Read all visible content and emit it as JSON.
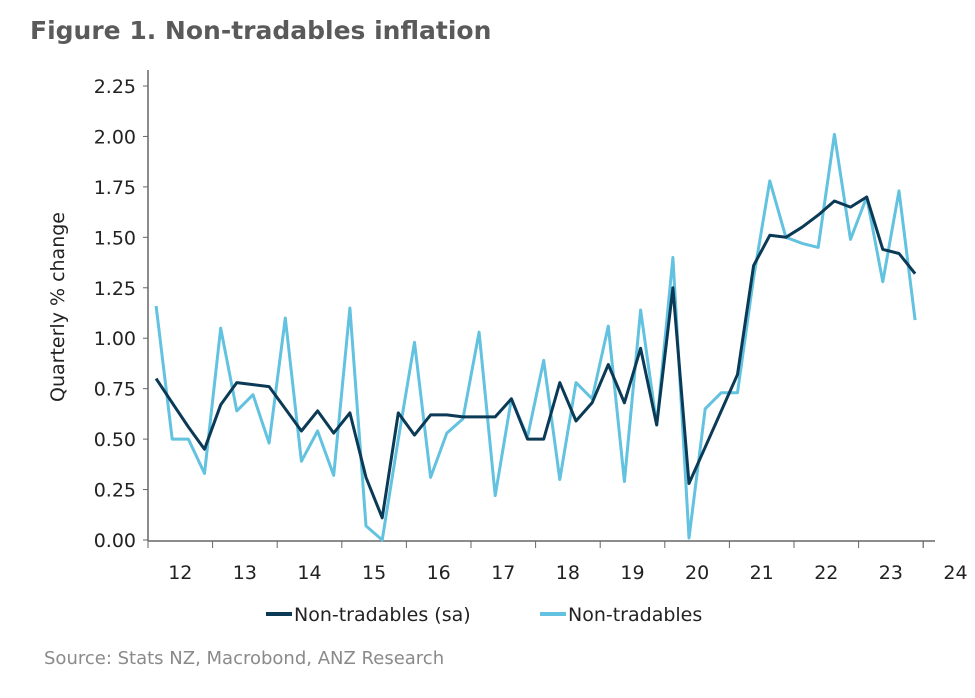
{
  "chart_data": {
    "type": "line",
    "title": "Figure 1. Non-tradables inflation",
    "ylabel": "Quarterly % change",
    "xlabel": "",
    "ylim": [
      0,
      2.25
    ],
    "yticks": [
      "0.00",
      "0.25",
      "0.50",
      "0.75",
      "1.00",
      "1.25",
      "1.50",
      "1.75",
      "2.00",
      "2.25"
    ],
    "xticks": [
      "12",
      "13",
      "14",
      "15",
      "16",
      "17",
      "18",
      "19",
      "20",
      "21",
      "22",
      "23",
      "24"
    ],
    "x_start": "2012Q1",
    "x_end": "2023Q4",
    "grid": false,
    "legend": "bottom",
    "series": [
      {
        "name": "Non-tradables (sa)",
        "color": "#0b3a57",
        "values": [
          0.8,
          0.68,
          0.56,
          0.45,
          0.67,
          0.78,
          0.77,
          0.76,
          0.65,
          0.54,
          0.64,
          0.53,
          0.63,
          0.31,
          0.11,
          0.63,
          0.52,
          0.62,
          0.62,
          0.61,
          0.61,
          0.61,
          0.7,
          0.5,
          0.5,
          0.78,
          0.59,
          0.68,
          0.87,
          0.68,
          0.95,
          0.57,
          1.25,
          0.28,
          0.46,
          0.64,
          0.82,
          1.36,
          1.51,
          1.5,
          1.55,
          1.61,
          1.68,
          1.65,
          1.7,
          1.44,
          1.42,
          1.32
        ]
      },
      {
        "name": "Non-tradables",
        "color": "#62c2df",
        "values": [
          1.16,
          0.5,
          0.5,
          0.33,
          1.05,
          0.64,
          0.72,
          0.48,
          1.1,
          0.39,
          0.54,
          0.32,
          1.15,
          0.07,
          0.0,
          0.5,
          0.98,
          0.31,
          0.53,
          0.6,
          1.03,
          0.22,
          0.7,
          0.51,
          0.89,
          0.3,
          0.78,
          0.7,
          1.06,
          0.29,
          1.14,
          0.57,
          1.4,
          0.01,
          0.65,
          0.73,
          0.73,
          1.3,
          1.78,
          1.5,
          1.47,
          1.45,
          2.01,
          1.49,
          1.7,
          1.28,
          1.73,
          1.09
        ]
      }
    ]
  },
  "source": "Source: Stats NZ, Macrobond, ANZ Research"
}
